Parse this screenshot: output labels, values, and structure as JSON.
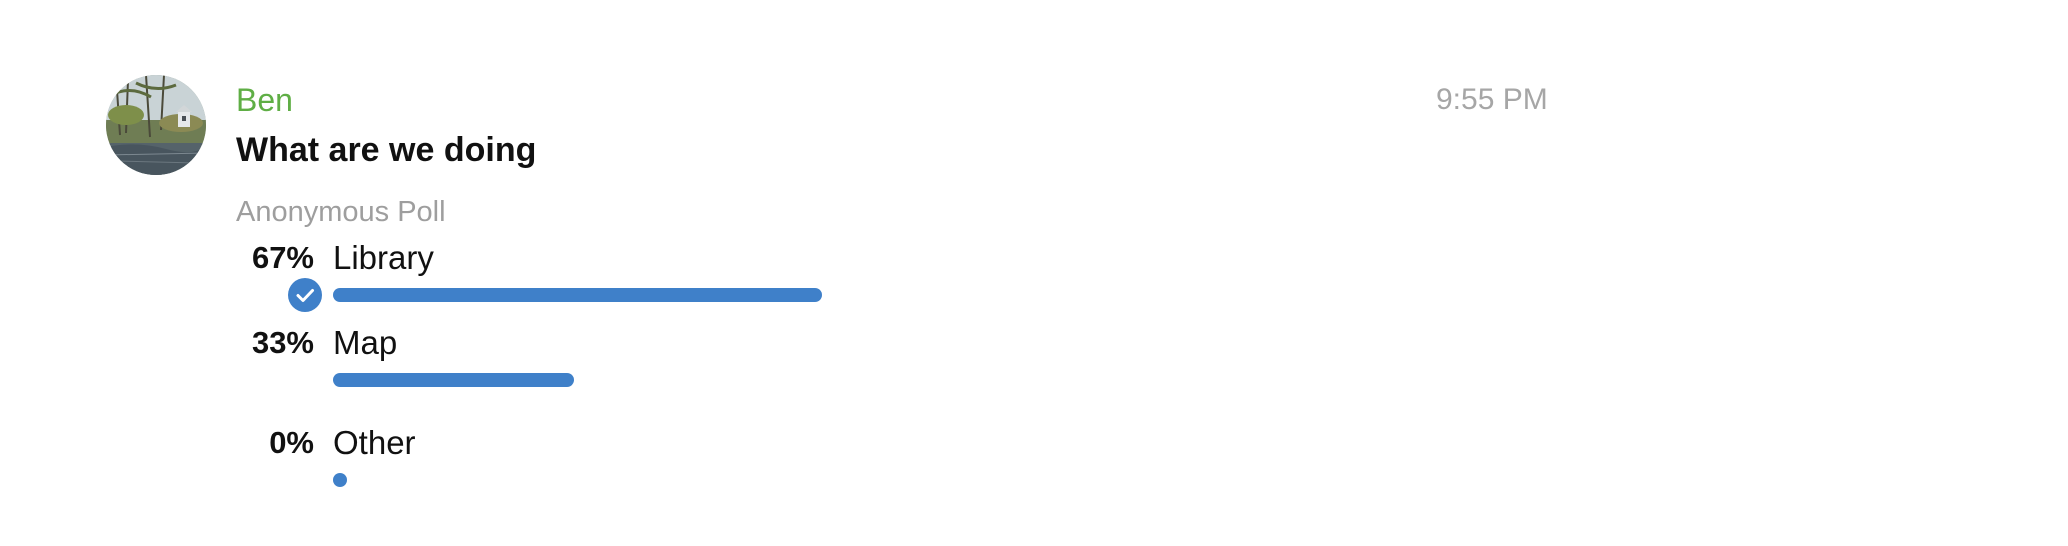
{
  "message": {
    "sender": "Ben",
    "time": "9:55 PM",
    "avatar_icon": "lake-photo-avatar",
    "sender_color": "#5fae45"
  },
  "poll": {
    "question": "What are we doing",
    "type_label": "Anonymous Poll",
    "bar_color": "#3f80c9",
    "options": [
      {
        "percent_label": "67%",
        "label": "Library",
        "fraction": 0.67,
        "chosen": true
      },
      {
        "percent_label": "33%",
        "label": "Map",
        "fraction": 0.33,
        "chosen": false
      },
      {
        "percent_label": "0%",
        "label": "Other",
        "fraction": 0.0,
        "chosen": false
      }
    ]
  }
}
